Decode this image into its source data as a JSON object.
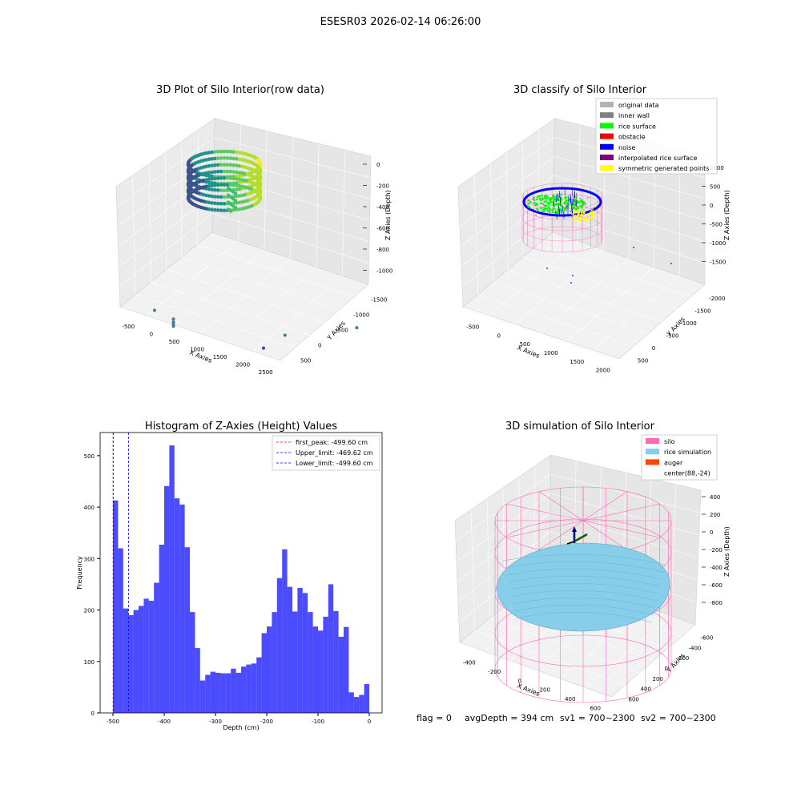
{
  "figure": {
    "suptitle": "ESESR03 2026-02-14 06:26:00",
    "info": {
      "flag": "flag = 0",
      "avg_depth": "avgDepth = 394 cm",
      "sv1": "sv1 = 700~2300",
      "sv2": "sv2 = 700~2300"
    }
  },
  "chart_data": [
    {
      "type": "scatter",
      "title": "3D Plot of Silo Interior(row data)",
      "xlabel": "X Axies",
      "ylabel": "Y Axies",
      "zlabel": "Z Axies (Depth)",
      "x_ticks": [
        "-500",
        "0",
        "500",
        "1000",
        "1500",
        "2000",
        "2500"
      ],
      "y_ticks": [
        "500",
        "0",
        "-500",
        "-1000",
        "-1500"
      ],
      "z_ticks": [
        "0",
        "-200",
        "-400",
        "-600",
        "-800",
        "-1000"
      ],
      "colormap": "viridis",
      "outlier_points": [
        {
          "x": 300,
          "y": 250,
          "z": -870
        },
        {
          "x": 500,
          "y": 150,
          "z": -950
        },
        {
          "x": 500,
          "y": 150,
          "z": -980
        },
        {
          "x": 500,
          "y": 150,
          "z": -1000
        },
        {
          "x": 500,
          "y": 150,
          "z": -1020
        },
        {
          "x": 1500,
          "y": -300,
          "z": -1200
        },
        {
          "x": 2100,
          "y": -200,
          "z": -950
        },
        {
          "x": 2300,
          "y": -900,
          "z": -1050
        }
      ]
    },
    {
      "type": "scatter",
      "title": "3D classify of Silo Interior",
      "xlabel": "X Axies",
      "ylabel": "Y Axies",
      "zlabel": "Z Axies (Depth)",
      "x_ticks": [
        "-500",
        "0",
        "500",
        "1000",
        "1500",
        "2000"
      ],
      "y_ticks": [
        "500",
        "0",
        "-500",
        "-1000",
        "-1500",
        "-2000"
      ],
      "z_ticks": [
        "1000",
        "500",
        "0",
        "-500",
        "-1000",
        "-1500"
      ],
      "legend_position": "upper right",
      "legend": [
        {
          "label": "original data",
          "color": "#b3b3b3"
        },
        {
          "label": "inner wall",
          "color": "#808080"
        },
        {
          "label": "rice surface",
          "color": "#00ff00"
        },
        {
          "label": "obstacle",
          "color": "#ff0000"
        },
        {
          "label": "noise",
          "color": "#0000ff"
        },
        {
          "label": "interpolated rice surface",
          "color": "#800080"
        },
        {
          "label": "symmetric generated points",
          "color": "#ffff00"
        }
      ]
    },
    {
      "type": "bar",
      "title": "Histogram of Z-Axies (Height) Values",
      "xlabel": "Depth (cm)",
      "ylabel": "Frequency",
      "xlim": [
        -525,
        25
      ],
      "ylim": [
        0,
        545
      ],
      "x_ticks": [
        -500,
        -400,
        -300,
        -200,
        -100,
        0
      ],
      "y_ticks": [
        0,
        100,
        200,
        300,
        400,
        500
      ],
      "bar_color": "#0000ff",
      "bin_start": -500,
      "bin_width": 10,
      "values": [
        413,
        320,
        203,
        190,
        200,
        208,
        222,
        218,
        253,
        327,
        441,
        520,
        417,
        405,
        322,
        196,
        126,
        63,
        74,
        80,
        78,
        77,
        77,
        86,
        78,
        90,
        94,
        96,
        108,
        155,
        168,
        196,
        262,
        318,
        245,
        197,
        243,
        233,
        196,
        168,
        160,
        187,
        250,
        198,
        148,
        167,
        40,
        31,
        35,
        56
      ],
      "vlines": [
        {
          "label": "first_peak: -499.60 cm",
          "x": -499.6,
          "color": "#ff0000"
        },
        {
          "label": "Upper_limit: -469.62 cm",
          "x": -469.62,
          "color": "#0000ff"
        },
        {
          "label": "Lower_limit: -499.60 cm",
          "x": -499.6,
          "color": "#0000ff"
        }
      ],
      "legend_position": "upper right"
    },
    {
      "type": "surface",
      "title": "3D simulation of Silo Interior",
      "xlabel": "X Axies",
      "ylabel": "Y Axies",
      "zlabel": "Z Axies (Depth)",
      "x_ticks": [
        "-400",
        "-200",
        "0",
        "200",
        "400",
        "600"
      ],
      "y_ticks": [
        "600",
        "400",
        "200",
        "0",
        "-200",
        "-400",
        "-600"
      ],
      "z_ticks": [
        "400",
        "200",
        "0",
        "-200",
        "-400",
        "-600",
        "-800"
      ],
      "legend_position": "upper right",
      "legend": [
        {
          "label": "silo",
          "color": "#ff69b4"
        },
        {
          "label": "rice simulation",
          "color": "#87ceeb"
        },
        {
          "label": "auger",
          "color": "#ff4500"
        },
        {
          "label": "center(88,-24)",
          "color": ""
        }
      ]
    }
  ]
}
